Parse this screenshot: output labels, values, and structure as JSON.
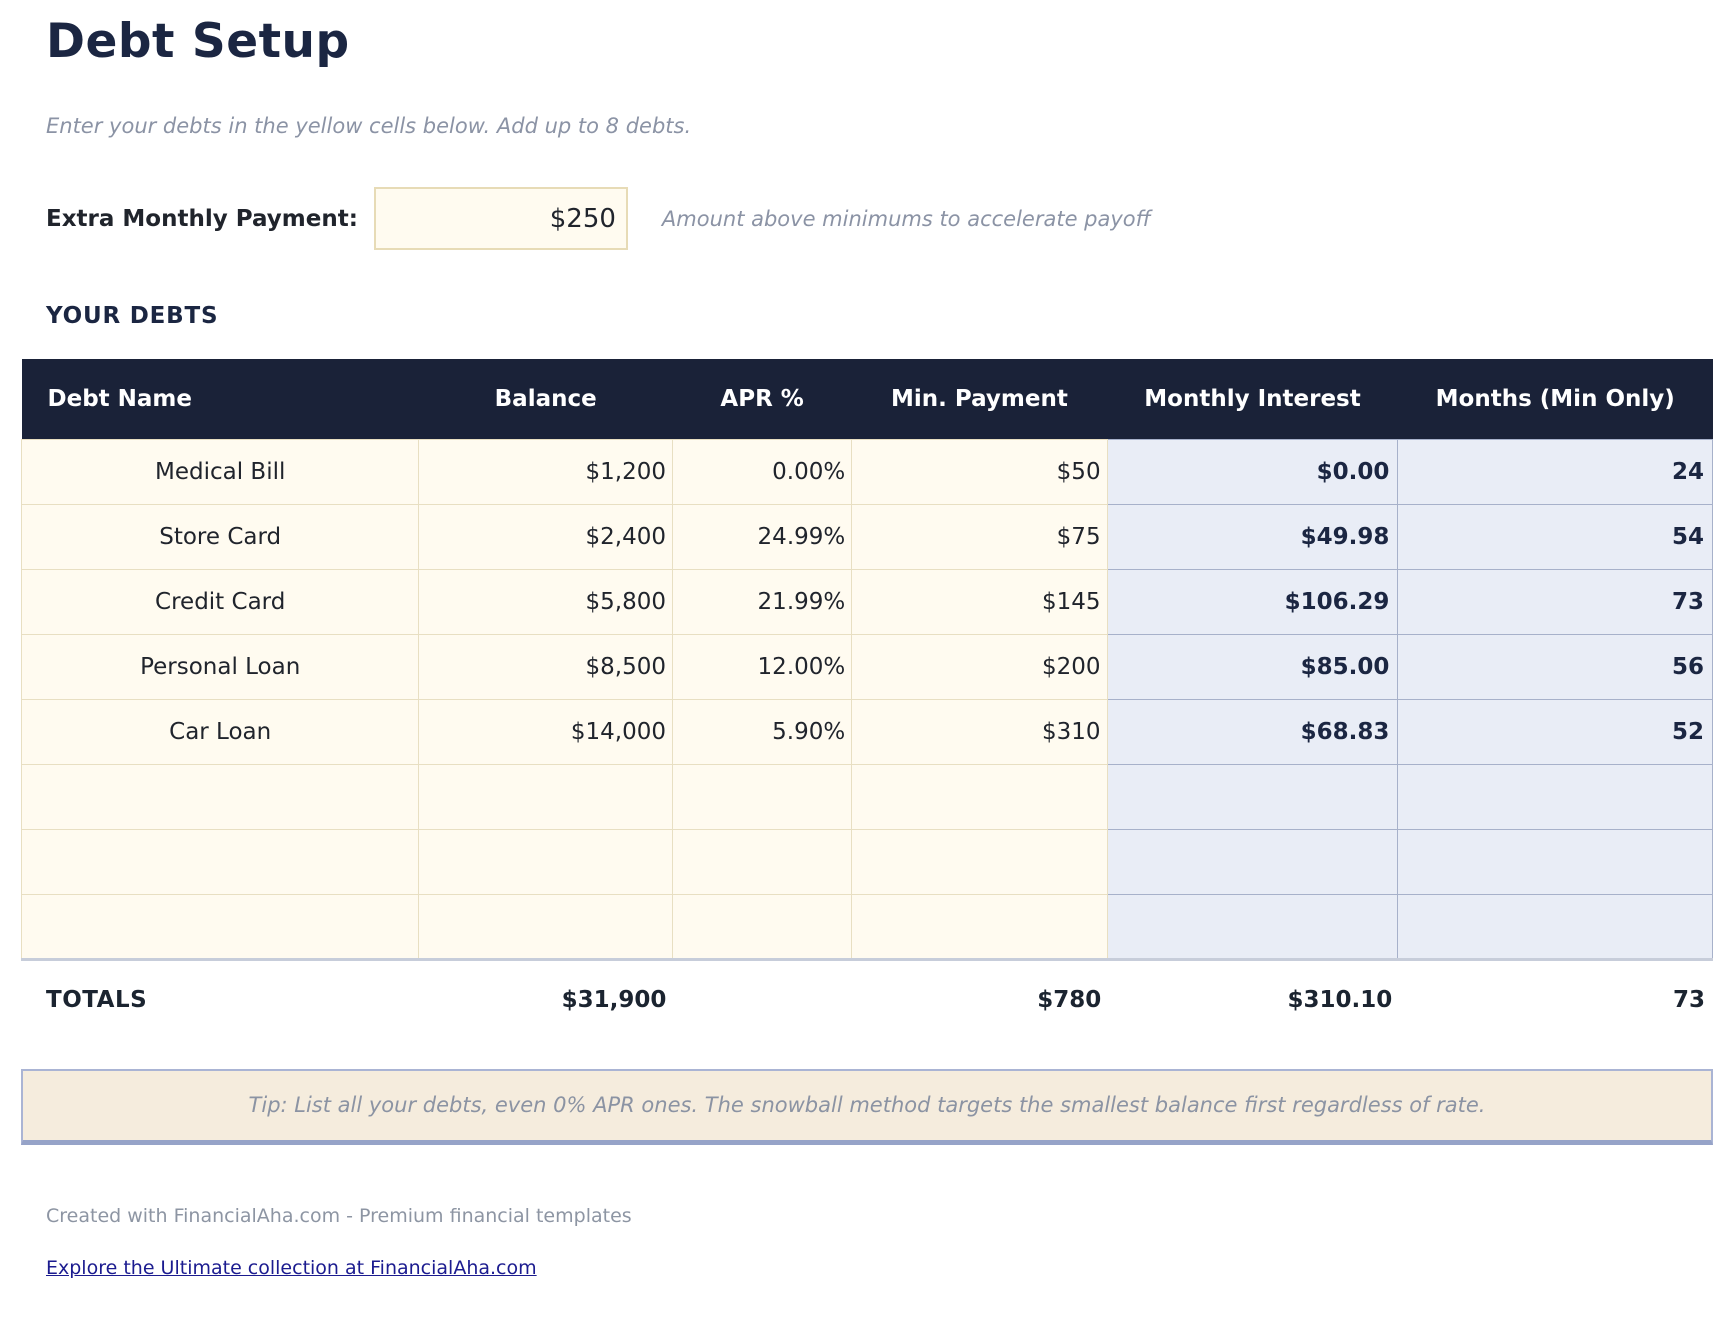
{
  "page": {
    "title": "Debt Setup",
    "subtitle": "Enter your debts in the yellow cells below. Add up to 8 debts."
  },
  "extra_payment": {
    "label": "Extra Monthly Payment:",
    "value": "$250",
    "note": "Amount above minimums to accelerate payoff"
  },
  "debts_section": {
    "heading": "YOUR DEBTS",
    "columns": [
      "Debt Name",
      "Balance",
      "APR %",
      "Min. Payment",
      "Monthly Interest",
      "Months (Min Only)"
    ],
    "rows": [
      {
        "name": "Medical Bill",
        "balance": "$1,200",
        "apr": "0.00%",
        "min_payment": "$50",
        "monthly_interest": "$0.00",
        "months": "24"
      },
      {
        "name": "Store Card",
        "balance": "$2,400",
        "apr": "24.99%",
        "min_payment": "$75",
        "monthly_interest": "$49.98",
        "months": "54"
      },
      {
        "name": "Credit Card",
        "balance": "$5,800",
        "apr": "21.99%",
        "min_payment": "$145",
        "monthly_interest": "$106.29",
        "months": "73"
      },
      {
        "name": "Personal Loan",
        "balance": "$8,500",
        "apr": "12.00%",
        "min_payment": "$200",
        "monthly_interest": "$85.00",
        "months": "56"
      },
      {
        "name": "Car Loan",
        "balance": "$14,000",
        "apr": "5.90%",
        "min_payment": "$310",
        "monthly_interest": "$68.83",
        "months": "52"
      },
      {
        "name": "",
        "balance": "",
        "apr": "",
        "min_payment": "",
        "monthly_interest": "",
        "months": ""
      },
      {
        "name": "",
        "balance": "",
        "apr": "",
        "min_payment": "",
        "monthly_interest": "",
        "months": ""
      },
      {
        "name": "",
        "balance": "",
        "apr": "",
        "min_payment": "",
        "monthly_interest": "",
        "months": ""
      }
    ],
    "totals": {
      "label": "TOTALS",
      "balance": "$31,900",
      "min_payment": "$780",
      "monthly_interest": "$310.10",
      "months": "73"
    }
  },
  "tip": {
    "text": "Tip: List all your debts, even 0% APR ones. The snowball method targets the smallest balance first regardless of rate."
  },
  "footer": {
    "credit": "Created with FinancialAha.com - Premium financial templates",
    "link_label": "Explore the Ultimate collection at FinancialAha.com"
  },
  "colors": {
    "header_navy": "#1a2238",
    "title_navy": "#1b2642",
    "entry_cell_bg": "#fffbf0",
    "entry_cell_border": "#e8dfc2",
    "calc_cell_bg": "#e9edf6",
    "calc_cell_border": "#a7b1ca",
    "tip_bg": "#f5ecdd",
    "tip_border": "#aab4d4",
    "muted_text": "#8b93a5",
    "link_blue": "#1b1b8f"
  }
}
